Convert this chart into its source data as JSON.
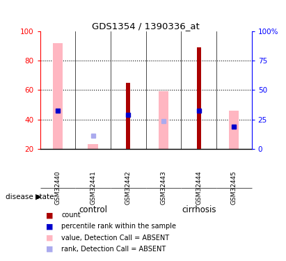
{
  "title": "GDS1354 / 1390336_at",
  "samples": [
    "GSM32440",
    "GSM32441",
    "GSM32442",
    "GSM32443",
    "GSM32444",
    "GSM32445"
  ],
  "ylim_left": [
    20,
    100
  ],
  "ylim_right": [
    0,
    100
  ],
  "yticks_left": [
    20,
    40,
    60,
    80,
    100
  ],
  "yticks_right": [
    0,
    25,
    50,
    75,
    100
  ],
  "ytick_labels_right": [
    "0",
    "25",
    "50",
    "75",
    "100%"
  ],
  "red_bars": [
    null,
    null,
    65,
    null,
    89,
    null
  ],
  "pink_bars": [
    [
      20,
      92
    ],
    [
      20,
      23
    ],
    null,
    [
      20,
      59
    ],
    null,
    [
      20,
      46
    ]
  ],
  "blue_squares": [
    46,
    null,
    43,
    null,
    46,
    35
  ],
  "light_blue_squares": [
    null,
    29,
    null,
    39,
    null,
    null
  ],
  "red_bar_color": "#AA0000",
  "pink_bar_color": "#FFB6C1",
  "blue_sq_color": "#0000CC",
  "light_blue_sq_color": "#AAAAEE",
  "control_color": "#90EE90",
  "cirrhosis_color": "#33CC33",
  "legend_items": [
    {
      "label": "count",
      "color": "#AA0000"
    },
    {
      "label": "percentile rank within the sample",
      "color": "#0000CC"
    },
    {
      "label": "value, Detection Call = ABSENT",
      "color": "#FFB6C1"
    },
    {
      "label": "rank, Detection Call = ABSENT",
      "color": "#AAAAEE"
    }
  ],
  "dotted_lines": [
    40,
    60,
    80
  ]
}
